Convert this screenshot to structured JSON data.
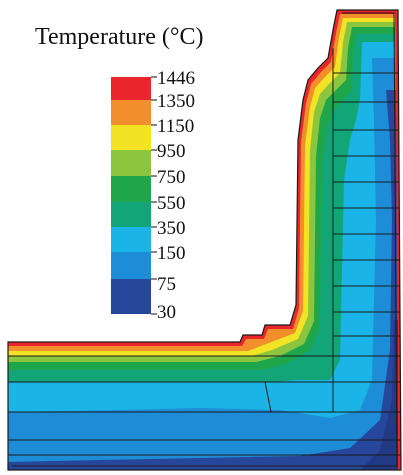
{
  "title": "Temperature (°C)",
  "legend": {
    "labels": [
      "1446",
      "1350",
      "1150",
      "950",
      "750",
      "550",
      "350",
      "150",
      "75",
      "30"
    ],
    "bands": [
      {
        "from": "1350",
        "to": "1446",
        "color": "#e8262b"
      },
      {
        "from": "1150",
        "to": "1350",
        "color": "#f28e2b"
      },
      {
        "from": "950",
        "to": "1150",
        "color": "#f2e324"
      },
      {
        "from": "750",
        "to": "950",
        "color": "#8cc63f"
      },
      {
        "from": "550",
        "to": "750",
        "color": "#1fa64a"
      },
      {
        "from": "350",
        "to": "550",
        "color": "#12a577"
      },
      {
        "from": "150",
        "to": "350",
        "color": "#1bb4e6"
      },
      {
        "from": "75",
        "to": "150",
        "color": "#1c8dd6"
      },
      {
        "from": "30",
        "to": "75",
        "color": "#26479c"
      }
    ]
  }
}
